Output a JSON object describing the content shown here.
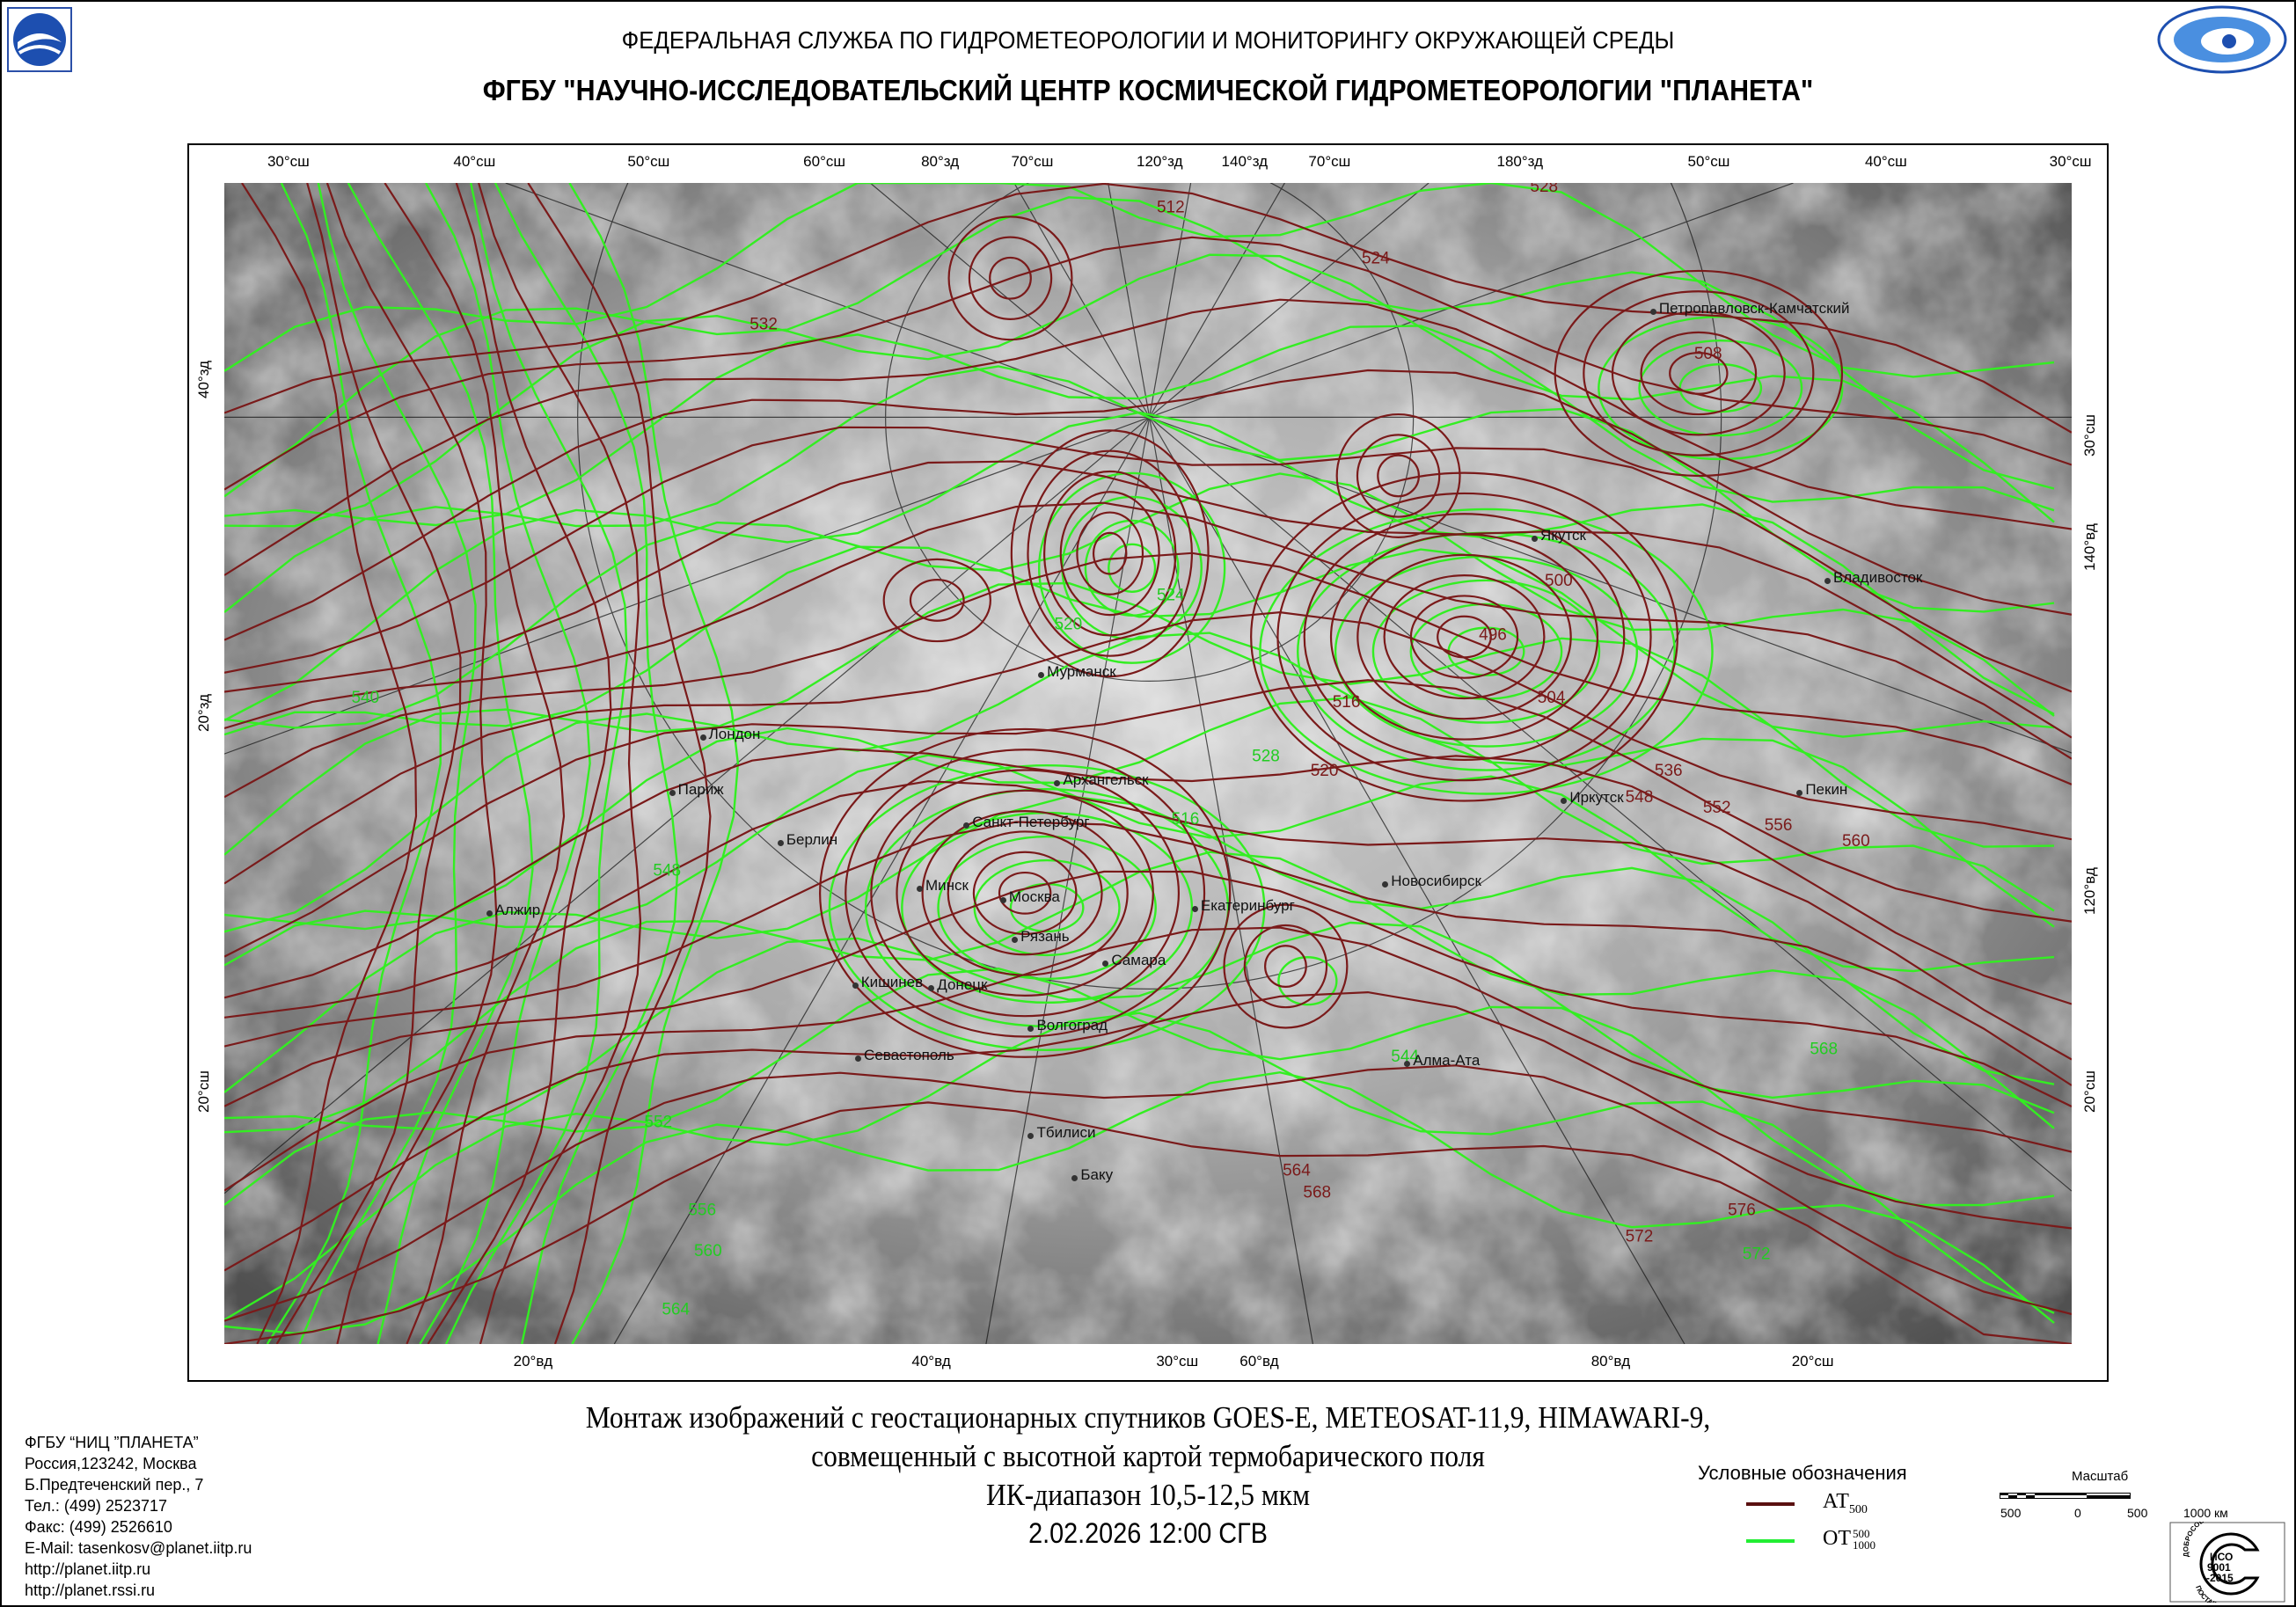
{
  "header": {
    "agency": "ФЕДЕРАЛЬНАЯ СЛУЖБА ПО ГИДРОМЕТЕОРОЛОГИИ И МОНИТОРИНГУ ОКРУЖАЮЩЕЙ СРЕДЫ",
    "center": "ФГБУ \"НАУЧНО-ИССЛЕДОВАТЕЛЬСКИЙ ЦЕНТР КОСМИЧЕСКОЙ ГИДРОМЕТЕОРОЛОГИИ \"ПЛАНЕТА\""
  },
  "map": {
    "top_ticks": [
      "30°сш",
      "40°сш",
      "50°сш",
      "60°сш",
      "80°зд",
      "70°сш",
      "120°зд",
      "140°зд",
      "70°сш",
      "180°зд",
      "50°сш",
      "40°сш",
      "30°сш"
    ],
    "bottom_ticks": [
      "20°вд",
      "40°вд",
      "30°сш",
      "60°вд",
      "80°вд",
      "20°сш"
    ],
    "left_ticks": [
      "40°зд",
      "20°зд",
      "20°сш"
    ],
    "right_ticks": [
      "30°сш",
      "140°вд",
      "120°вд",
      "20°сш"
    ],
    "cities": [
      "Петропавловск-Камчатский",
      "Якутск",
      "Владивосток",
      "Мурманск",
      "Архангельск",
      "Пекин",
      "Иркутск",
      "Санкт-Петербург",
      "Лондон",
      "Париж",
      "Берлин",
      "Новосибирск",
      "Екатеринбург",
      "Минск",
      "Москва",
      "Рязань",
      "Самара",
      "Кишинев",
      "Донецк",
      "Волгоград",
      "Алжир",
      "Севастополь",
      "Алма-Ата",
      "Тбилиси",
      "Баку"
    ],
    "at500_labels": [
      "512",
      "528",
      "532",
      "524",
      "508",
      "496",
      "500",
      "504",
      "516",
      "520",
      "536",
      "548",
      "552",
      "556",
      "560",
      "564",
      "568",
      "572",
      "576"
    ],
    "ot_labels": [
      "540",
      "548",
      "552",
      "556",
      "560",
      "564",
      "528",
      "524",
      "520",
      "516",
      "544",
      "568",
      "572"
    ],
    "colors": {
      "at500": "#7a1a1a",
      "ot": "#33ee22"
    }
  },
  "caption": {
    "line1": "Монтаж изображений с геостационарных спутников GOES-E, METEOSAT-11,9, HIMAWARI-9,",
    "line2": "совмещенный с высотной картой термобарического поля",
    "line3": "ИК-диапазон 10,5-12,5 мкм",
    "datetime": "2.02.2026  12:00 СГВ"
  },
  "address": [
    "ФГБУ “НИЦ ”ПЛАНЕТА”",
    "Россия,123242, Москва",
    "Б.Предтеченский пер., 7",
    "Тел.:  (499) 2523717",
    "Факс: (499) 2526610",
    "E-Mail: tasenkosv@planet.iitp.ru",
    "http://planet.iitp.ru",
    "http://planet.rssi.ru"
  ],
  "legend": {
    "title": "Условные обозначения",
    "at": {
      "main": "АТ",
      "sub": "500"
    },
    "ot": {
      "main": "ОТ",
      "sup": "500",
      "sub": "1000"
    }
  },
  "scale": {
    "title": "Масштаб",
    "labels": [
      "500",
      "0",
      "500",
      "1000 км"
    ]
  },
  "iso": {
    "text": "ИСО 9001 -2015",
    "top": "ДОБРОСОВЕСТНЫЙ",
    "bottom": "ПОСТАВЩИК"
  }
}
